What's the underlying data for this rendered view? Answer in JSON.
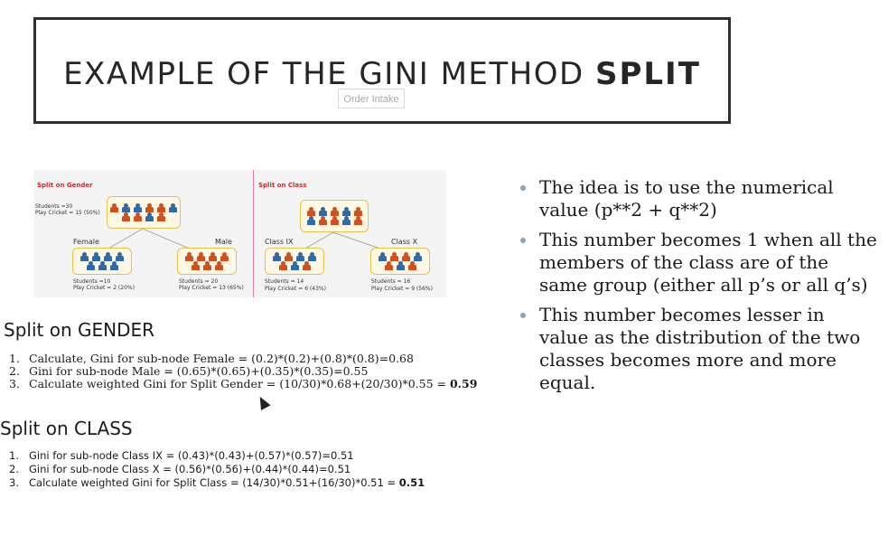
{
  "slide": {
    "title_main": "EXAMPLE OF THE GINI METHOD",
    "title_bold": "SPLIT",
    "placeholder": "Order Intake"
  },
  "diagram": {
    "gender": {
      "label": "Split on Gender",
      "students": "Students =30",
      "play": "Play Cricket = 15 (50%)",
      "female_label": "Female",
      "male_label": "Male",
      "female_students": "Students =10",
      "female_play": "Play Cricket = 2 (20%)",
      "male_students": "Students = 20",
      "male_play": "Play Cricket = 13 (65%)"
    },
    "class": {
      "label": "Split on Class",
      "ix_label": "Class IX",
      "x_label": "Class X",
      "ix_students": "Students = 14",
      "ix_play": "Play Cricket = 6 (43%)",
      "x_students": "Students = 16",
      "x_play": "Play Cricket = 9 (56%)"
    }
  },
  "gender_section": {
    "heading": "Split on GENDER",
    "items": [
      {
        "num": "1.",
        "text": "Calculate, Gini for sub-node Female = (0.2)*(0.2)+(0.8)*(0.8)=0.68",
        "bold": ""
      },
      {
        "num": "2.",
        "text": "Gini for sub-node Male = (0.65)*(0.65)+(0.35)*(0.35)=0.55",
        "bold": ""
      },
      {
        "num": "3.",
        "text": "Calculate weighted Gini for Split Gender = (10/30)*0.68+(20/30)*0.55 = ",
        "bold": "0.59"
      }
    ]
  },
  "class_section": {
    "heading": "Split on CLASS",
    "items": [
      {
        "num": "1.",
        "text": "Gini  for  sub-node  Class IX = (0.43)*(0.43)+(0.57)*(0.57)=0.51",
        "bold": ""
      },
      {
        "num": "2.",
        "text": "Gini  for  sub-node  Class X = (0.56)*(0.56)+(0.44)*(0.44)=0.51",
        "bold": ""
      },
      {
        "num": "3.",
        "text": "Calculate  weighted  Gini  for  Split  Class  =  (14/30)*0.51+(16/30)*0.51  =  ",
        "bold": "0.51"
      }
    ]
  },
  "bullets": [
    "The idea is to use the numerical value (p**2 + q**2)",
    "This number becomes 1 when all the members of the class are of the same group (either all p’s or all q’s)",
    "This number becomes lesser in value as the distribution of the two classes becomes more and more equal."
  ]
}
